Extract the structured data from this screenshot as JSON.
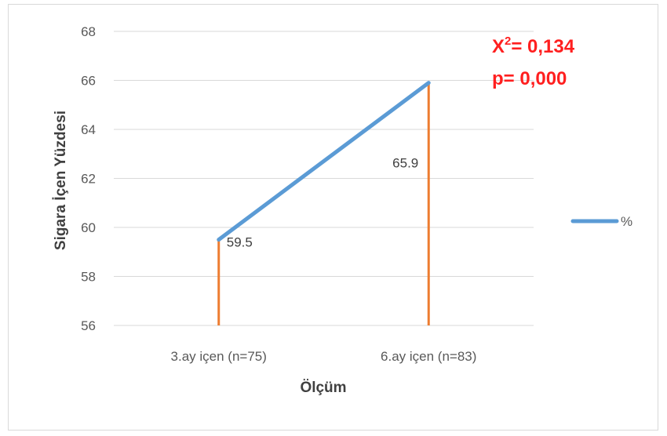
{
  "chart_data": {
    "type": "line",
    "categories": [
      "3.ay içen (n=75)",
      "6.ay içen (n=83)"
    ],
    "series": [
      {
        "name": "%",
        "values": [
          59.5,
          65.9
        ],
        "color": "#5b9bd5"
      }
    ],
    "drop_lines_color": "#ed7d31",
    "data_labels": [
      "59.5",
      "65.9"
    ],
    "xlabel": "Ölçüm",
    "ylabel": "Sigara İçen Yüzdesi",
    "ylim": [
      56,
      68
    ],
    "yticks": [
      "56",
      "58",
      "60",
      "62",
      "64",
      "66",
      "68"
    ],
    "grid": true,
    "legend_position": "right",
    "annotation": {
      "line1_prefix": "X",
      "line1_sup": "2",
      "line1_suffix": "= 0,134",
      "line2": "p= 0,000"
    }
  }
}
